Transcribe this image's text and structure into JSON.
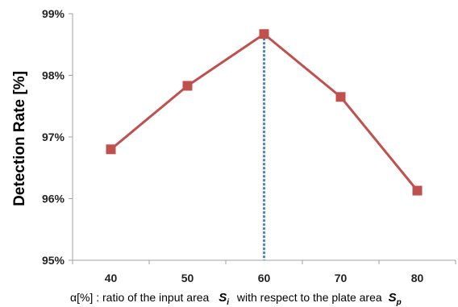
{
  "chart_data": {
    "type": "line",
    "x": [
      40,
      50,
      60,
      70,
      80
    ],
    "y": [
      96.8,
      97.83,
      98.67,
      97.65,
      96.13
    ],
    "y_ticks": [
      95,
      96,
      97,
      98,
      99
    ],
    "y_tick_labels": [
      "95%",
      "96%",
      "97%",
      "98%",
      "99%"
    ],
    "x_tick_labels": [
      "40",
      "50",
      "60",
      "70",
      "80"
    ],
    "ylim": [
      95,
      99
    ],
    "ylabel": "Detection Rate [%]",
    "xlabel_prefix": "α[%] : ratio of the input area",
    "xlabel_sym1": "S",
    "xlabel_sub1": "i",
    "xlabel_mid": "with respect to the plate area",
    "xlabel_sym2": "S",
    "xlabel_sub2": "p",
    "highlight_x": 60,
    "grid": false,
    "legend": "none",
    "colors": {
      "series": "#c0504d",
      "highlight": "#4f81bd",
      "axis": "#a0a0a0"
    }
  }
}
